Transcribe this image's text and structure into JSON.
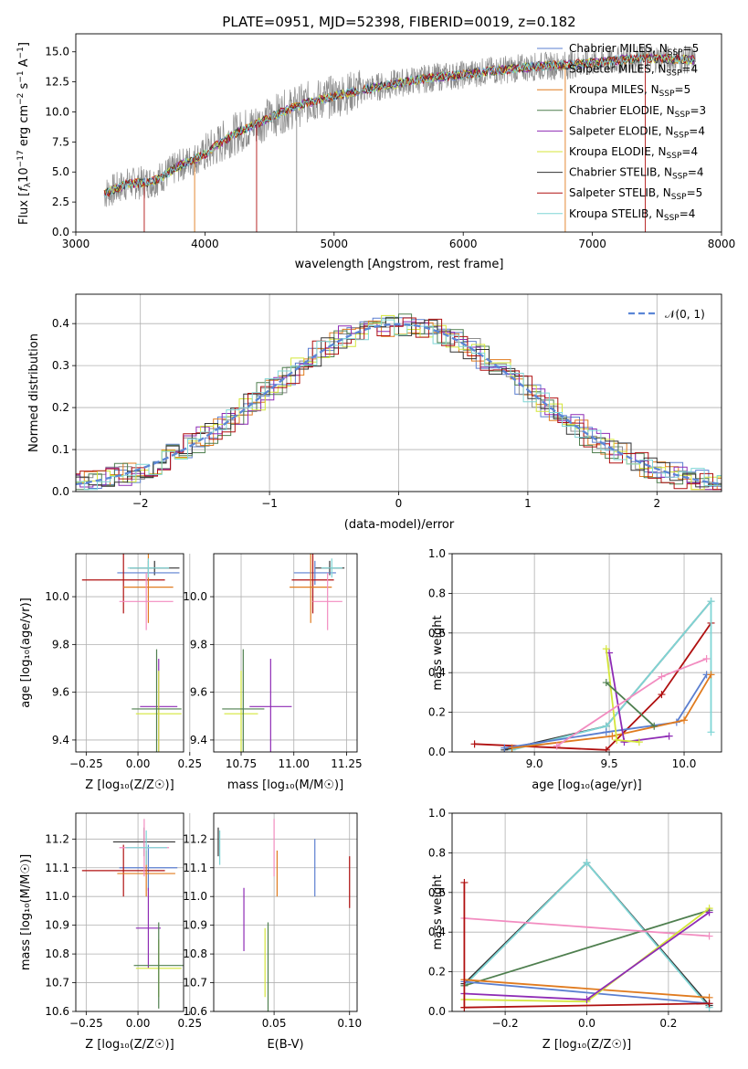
{
  "chart_data": [
    {
      "type": "line",
      "title": "PLATE=0951, MJD=52398, FIBERID=0019, z=0.182",
      "xlabel": "wavelength [Angstrom, rest frame]",
      "ylabel": "Flux [f_λ 10^-17 erg cm^-2 s^-1 A^-1]",
      "xlim": [
        3000,
        8000
      ],
      "ylim": [
        0,
        16.5
      ],
      "xticks": [
        "3000",
        "4000",
        "5000",
        "6000",
        "7000",
        "8000"
      ],
      "yticks": [
        "0.0",
        "2.5",
        "5.0",
        "7.5",
        "10.0",
        "12.5",
        "15.0"
      ],
      "legend_position": "right",
      "spectrum_trend": {
        "x": [
          3220,
          3400,
          3600,
          3800,
          4000,
          4200,
          4400,
          4600,
          4800,
          5000,
          5200,
          5400,
          5600,
          5800,
          6000,
          6200,
          6400,
          6600,
          6800,
          7000,
          7200,
          7400,
          7600,
          7800
        ],
        "y": [
          3.2,
          4.0,
          4.2,
          5.5,
          6.5,
          8.0,
          9.0,
          10.0,
          10.8,
          11.3,
          11.8,
          12.2,
          12.6,
          12.9,
          13.1,
          13.4,
          13.6,
          13.8,
          13.9,
          14.1,
          14.3,
          14.5,
          14.4,
          14.3
        ]
      },
      "series": [
        {
          "name": "Chabrier MILES, N_SSP=5",
          "color": "#5b7fd0"
        },
        {
          "name": "Salpeter MILES, N_SSP=4",
          "color": "#8c8c8c"
        },
        {
          "name": "Kroupa MILES, N_SSP=5",
          "color": "#e07b1f"
        },
        {
          "name": "Chabrier ELODIE, N_SSP=3",
          "color": "#4f7f4f"
        },
        {
          "name": "Salpeter ELODIE, N_SSP=4",
          "color": "#8e2bb5"
        },
        {
          "name": "Kroupa ELODIE, N_SSP=4",
          "color": "#d4e63a"
        },
        {
          "name": "Chabrier STELIB, N_SSP=4",
          "color": "#333333"
        },
        {
          "name": "Salpeter STELIB, N_SSP=5",
          "color": "#b01010"
        },
        {
          "name": "Kroupa STELIB, N_SSP=4",
          "color": "#7fd6d6"
        }
      ]
    },
    {
      "type": "line",
      "xlabel": "(data-model)/error",
      "ylabel": "Normed distribution",
      "xlim": [
        -2.5,
        2.5
      ],
      "ylim": [
        0,
        0.47
      ],
      "xticks": [
        "−2",
        "−1",
        "0",
        "1",
        "2"
      ],
      "yticks": [
        "0.0",
        "0.1",
        "0.2",
        "0.3",
        "0.4"
      ],
      "legend": "𝒩(0, 1)",
      "grid": true
    },
    {
      "type": "scatter",
      "xlabel": "Z [log10(Z/Z☉)]",
      "ylabel": "age  [log10(age/yr)]",
      "xlim": [
        -0.3,
        0.22
      ],
      "ylim": [
        9.35,
        10.18
      ],
      "xticks": [
        "−0.25",
        "0.00",
        "0.25"
      ],
      "yticks": [
        "9.4",
        "9.6",
        "9.8",
        "10.0"
      ],
      "points": [
        {
          "x": 0.08,
          "y": 10.12,
          "xerr": 0.12,
          "yerr": 0.03,
          "color": "#333333"
        },
        {
          "x": 0.05,
          "y": 10.1,
          "xerr": 0.15,
          "yerr": 0.05,
          "color": "#5b7fd0"
        },
        {
          "x": -0.07,
          "y": 10.07,
          "xerr": 0.2,
          "yerr": 0.14,
          "color": "#b01010"
        },
        {
          "x": 0.05,
          "y": 10.04,
          "xerr": 0.12,
          "yerr": 0.15,
          "color": "#e07b1f"
        },
        {
          "x": 0.04,
          "y": 9.98,
          "xerr": 0.13,
          "yerr": 0.12,
          "color": "#f28cc0"
        },
        {
          "x": 0.05,
          "y": 10.12,
          "xerr": 0.1,
          "yerr": 0.04,
          "color": "#7fd6d6"
        },
        {
          "x": 0.1,
          "y": 9.54,
          "xerr": 0.09,
          "yerr": 0.2,
          "color": "#8e2bb5"
        },
        {
          "x": 0.1,
          "y": 9.51,
          "xerr": 0.11,
          "yerr": 0.18,
          "color": "#d4e63a"
        },
        {
          "x": 0.09,
          "y": 9.53,
          "xerr": 0.12,
          "yerr": 0.25,
          "color": "#4f7f4f"
        }
      ]
    },
    {
      "type": "scatter",
      "xlabel": "mass [log10(M/M☉)]",
      "xlim": [
        10.62,
        11.3
      ],
      "ylim": [
        9.35,
        10.18
      ],
      "xticks": [
        "10.75",
        "11.00",
        "11.25"
      ],
      "yticks": [
        "9.4",
        "9.6",
        "9.8",
        "10.0"
      ],
      "points": [
        {
          "x": 11.17,
          "y": 10.12,
          "xerr": 0.07,
          "yerr": 0.03,
          "color": "#333333"
        },
        {
          "x": 11.1,
          "y": 10.1,
          "xerr": 0.1,
          "yerr": 0.05,
          "color": "#5b7fd0"
        },
        {
          "x": 11.09,
          "y": 10.07,
          "xerr": 0.1,
          "yerr": 0.14,
          "color": "#b01010"
        },
        {
          "x": 11.08,
          "y": 10.04,
          "xerr": 0.1,
          "yerr": 0.15,
          "color": "#e07b1f"
        },
        {
          "x": 11.16,
          "y": 9.98,
          "xerr": 0.07,
          "yerr": 0.12,
          "color": "#f28cc0"
        },
        {
          "x": 11.18,
          "y": 10.12,
          "xerr": 0.05,
          "yerr": 0.04,
          "color": "#7fd6d6"
        },
        {
          "x": 10.89,
          "y": 9.54,
          "xerr": 0.1,
          "yerr": 0.2,
          "color": "#8e2bb5"
        },
        {
          "x": 10.75,
          "y": 9.51,
          "xerr": 0.08,
          "yerr": 0.18,
          "color": "#d4e63a"
        },
        {
          "x": 10.76,
          "y": 9.53,
          "xerr": 0.1,
          "yerr": 0.25,
          "color": "#4f7f4f"
        }
      ]
    },
    {
      "type": "line",
      "xlabel": "age  [log10(age/yr)]",
      "ylabel": "mass weight",
      "xlim": [
        8.45,
        10.25
      ],
      "ylim": [
        0,
        1.0
      ],
      "xticks": [
        "9.0",
        "9.5",
        "10.0"
      ],
      "yticks": [
        "0.0",
        "0.2",
        "0.4",
        "0.6",
        "0.8",
        "1.0"
      ],
      "grid": true,
      "series": [
        {
          "color": "#b01010",
          "x": [
            8.6,
            9.48,
            9.85,
            10.18
          ],
          "y": [
            0.04,
            0.01,
            0.29,
            0.65
          ]
        },
        {
          "color": "#333333",
          "x": [
            8.8,
            9.48,
            10.18
          ],
          "y": [
            0.01,
            0.13,
            0.76
          ]
        },
        {
          "color": "#7fd6d6",
          "x": [
            8.85,
            9.48,
            10.18,
            10.18
          ],
          "y": [
            0.01,
            0.13,
            0.76,
            0.1
          ]
        },
        {
          "color": "#5b7fd0",
          "x": [
            8.8,
            9.48,
            9.95,
            10.15
          ],
          "y": [
            0.02,
            0.1,
            0.15,
            0.39
          ]
        },
        {
          "color": "#e07b1f",
          "x": [
            8.85,
            9.52,
            10.0,
            10.18
          ],
          "y": [
            0.02,
            0.08,
            0.16,
            0.39
          ]
        },
        {
          "color": "#8e2bb5",
          "x": [
            9.5,
            9.6,
            9.9
          ],
          "y": [
            0.5,
            0.05,
            0.08
          ]
        },
        {
          "color": "#d4e63a",
          "x": [
            9.48,
            9.55,
            9.7
          ],
          "y": [
            0.52,
            0.06,
            0.05
          ]
        },
        {
          "color": "#4f7f4f",
          "x": [
            9.48,
            9.8
          ],
          "y": [
            0.35,
            0.13
          ]
        },
        {
          "color": "#f28cc0",
          "x": [
            9.15,
            9.85,
            10.15
          ],
          "y": [
            0.03,
            0.38,
            0.47
          ]
        }
      ]
    },
    {
      "type": "scatter",
      "xlabel": "Z [log10(Z/Z☉)]",
      "ylabel": "mass [log10(M/M☉)]",
      "xlim": [
        -0.3,
        0.22
      ],
      "ylim": [
        10.6,
        11.29
      ],
      "xticks": [
        "−0.25",
        "0.00",
        "0.25"
      ],
      "yticks": [
        "10.6",
        "10.7",
        "10.8",
        "10.9",
        "11.0",
        "11.1",
        "11.2"
      ],
      "points": [
        {
          "x": 0.03,
          "y": 11.19,
          "xerr": 0.15,
          "yerr": 0.05,
          "color": "#333333"
        },
        {
          "x": 0.05,
          "y": 11.1,
          "xerr": 0.14,
          "yerr": 0.08,
          "color": "#5b7fd0"
        },
        {
          "x": -0.07,
          "y": 11.09,
          "xerr": 0.2,
          "yerr": 0.09,
          "color": "#b01010"
        },
        {
          "x": 0.04,
          "y": 11.08,
          "xerr": 0.14,
          "yerr": 0.08,
          "color": "#e07b1f"
        },
        {
          "x": 0.03,
          "y": 11.17,
          "xerr": 0.12,
          "yerr": 0.1,
          "color": "#f28cc0"
        },
        {
          "x": 0.04,
          "y": 11.17,
          "xerr": 0.1,
          "yerr": 0.06,
          "color": "#7fd6d6"
        },
        {
          "x": 0.05,
          "y": 10.89,
          "xerr": 0.06,
          "yerr": 0.14,
          "color": "#8e2bb5"
        },
        {
          "x": 0.1,
          "y": 10.75,
          "xerr": 0.11,
          "yerr": 0.1,
          "color": "#d4e63a"
        },
        {
          "x": 0.1,
          "y": 10.76,
          "xerr": 0.12,
          "yerr": 0.15,
          "color": "#4f7f4f"
        }
      ]
    },
    {
      "type": "scatter",
      "xlabel": "E(B-V)",
      "xlim": [
        0.01,
        0.105
      ],
      "ylim": [
        10.6,
        11.29
      ],
      "xticks": [
        "0.05",
        "0.10"
      ],
      "yticks": [
        "10.6",
        "10.7",
        "10.8",
        "10.9",
        "11.0",
        "11.1",
        "11.2"
      ],
      "points": [
        {
          "x": 0.013,
          "y": 11.19,
          "yerr": 0.05,
          "color": "#333333"
        },
        {
          "x": 0.077,
          "y": 11.1,
          "yerr": 0.1,
          "color": "#5b7fd0"
        },
        {
          "x": 0.1,
          "y": 11.05,
          "yerr": 0.09,
          "color": "#b01010"
        },
        {
          "x": 0.052,
          "y": 11.08,
          "yerr": 0.08,
          "color": "#e07b1f"
        },
        {
          "x": 0.05,
          "y": 11.17,
          "yerr": 0.1,
          "color": "#f28cc0"
        },
        {
          "x": 0.014,
          "y": 11.17,
          "yerr": 0.06,
          "color": "#7fd6d6"
        },
        {
          "x": 0.03,
          "y": 10.92,
          "yerr": 0.11,
          "color": "#8e2bb5"
        },
        {
          "x": 0.044,
          "y": 10.77,
          "yerr": 0.12,
          "color": "#d4e63a"
        },
        {
          "x": 0.046,
          "y": 10.75,
          "yerr": 0.16,
          "color": "#4f7f4f"
        }
      ]
    },
    {
      "type": "line",
      "xlabel": "Z [log10(Z/Z☉)]",
      "ylabel": "mass weight",
      "xlim": [
        -0.33,
        0.33
      ],
      "ylim": [
        0,
        1.0
      ],
      "xticks": [
        "−0.2",
        "0.0",
        "0.2"
      ],
      "yticks": [
        "0.0",
        "0.2",
        "0.4",
        "0.6",
        "0.8",
        "1.0"
      ],
      "grid": true,
      "series": [
        {
          "color": "#333333",
          "x": [
            -0.3,
            0.0,
            0.3
          ],
          "y": [
            0.14,
            0.75,
            0.03
          ]
        },
        {
          "color": "#7fd6d6",
          "x": [
            -0.3,
            0.0,
            0.3
          ],
          "y": [
            0.13,
            0.75,
            0.02
          ]
        },
        {
          "color": "#4f7f4f",
          "x": [
            -0.3,
            0.3
          ],
          "y": [
            0.13,
            0.51
          ]
        },
        {
          "color": "#f28cc0",
          "x": [
            -0.3,
            0.3
          ],
          "y": [
            0.47,
            0.38
          ]
        },
        {
          "color": "#e07b1f",
          "x": [
            -0.3,
            0.3
          ],
          "y": [
            0.16,
            0.07
          ]
        },
        {
          "color": "#5b7fd0",
          "x": [
            -0.3,
            0.3
          ],
          "y": [
            0.15,
            0.04
          ]
        },
        {
          "color": "#d4e63a",
          "x": [
            -0.3,
            0.0,
            0.3
          ],
          "y": [
            0.06,
            0.05,
            0.52
          ]
        },
        {
          "color": "#8e2bb5",
          "x": [
            -0.3,
            0.0,
            0.3
          ],
          "y": [
            0.09,
            0.06,
            0.5
          ]
        },
        {
          "color": "#b01010",
          "x": [
            -0.3,
            0.3
          ],
          "y": [
            0.02,
            0.04
          ]
        },
        {
          "color": "#b01010",
          "x": [
            -0.3,
            -0.3
          ],
          "y": [
            0.02,
            0.65
          ]
        }
      ]
    }
  ]
}
